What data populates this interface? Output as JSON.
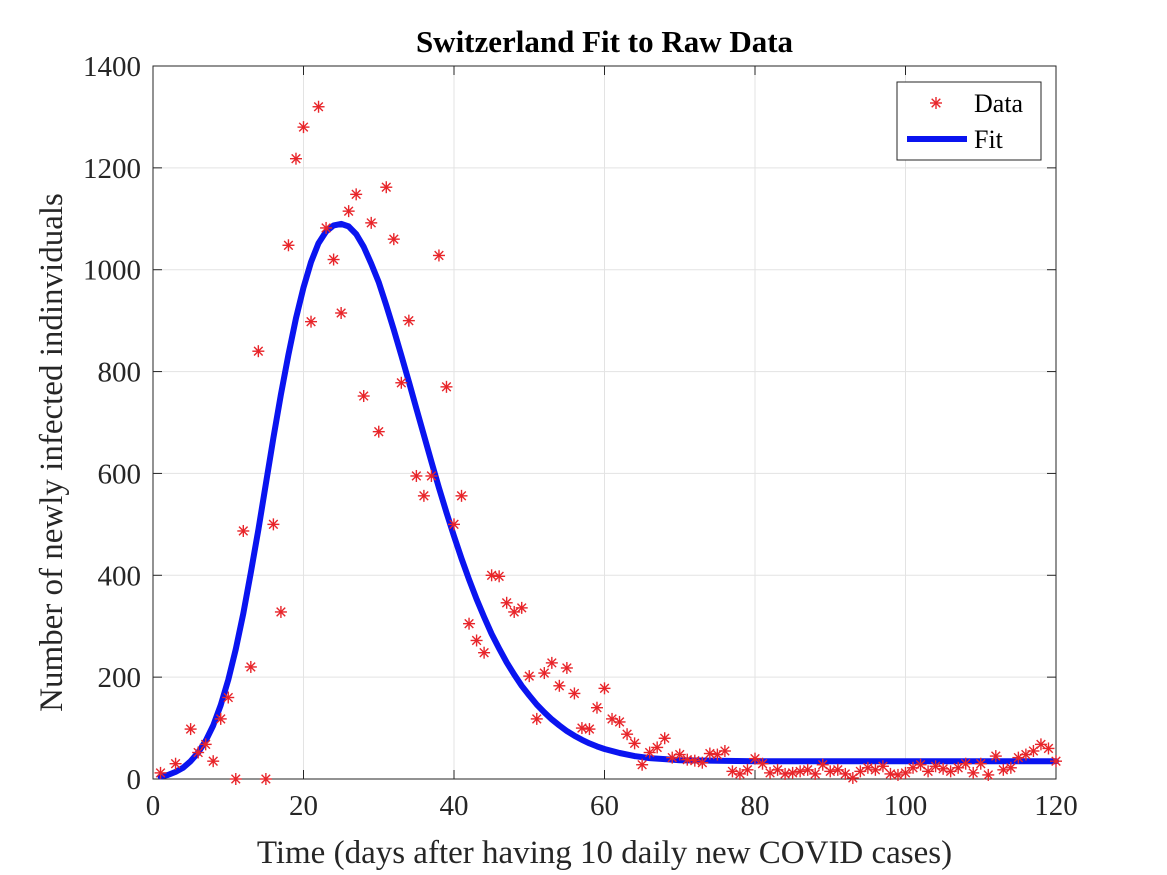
{
  "chart_data": {
    "type": "scatter",
    "title": "Switzerland Fit to Raw Data",
    "xlabel": "Time (days after having 10 daily new COVID cases)",
    "ylabel": "Number of newly infected indinviduals",
    "xlim": [
      0,
      120
    ],
    "ylim": [
      0,
      1400
    ],
    "xticks": [
      0,
      20,
      40,
      60,
      80,
      100,
      120
    ],
    "yticks": [
      0,
      200,
      400,
      600,
      800,
      1000,
      1200,
      1400
    ],
    "grid": true,
    "legend_position": "top-right",
    "series": [
      {
        "name": "Data",
        "type": "scatter",
        "marker": "asterisk",
        "color": "#e8252a",
        "points": [
          [
            1,
            12
          ],
          [
            3,
            30
          ],
          [
            5,
            98
          ],
          [
            6,
            52
          ],
          [
            7,
            68
          ],
          [
            8,
            35
          ],
          [
            9,
            118
          ],
          [
            10,
            160
          ],
          [
            11,
            0
          ],
          [
            12,
            487
          ],
          [
            13,
            220
          ],
          [
            14,
            840
          ],
          [
            15,
            0
          ],
          [
            16,
            500
          ],
          [
            17,
            328
          ],
          [
            18,
            1048
          ],
          [
            19,
            1218
          ],
          [
            20,
            1280
          ],
          [
            21,
            898
          ],
          [
            22,
            1320
          ],
          [
            23,
            1082
          ],
          [
            24,
            1020
          ],
          [
            25,
            915
          ],
          [
            26,
            1115
          ],
          [
            27,
            1148
          ],
          [
            28,
            752
          ],
          [
            29,
            1092
          ],
          [
            30,
            682
          ],
          [
            31,
            1162
          ],
          [
            32,
            1060
          ],
          [
            33,
            778
          ],
          [
            34,
            900
          ],
          [
            35,
            595
          ],
          [
            36,
            556
          ],
          [
            37,
            595
          ],
          [
            38,
            1028
          ],
          [
            39,
            770
          ],
          [
            40,
            500
          ],
          [
            41,
            556
          ],
          [
            42,
            305
          ],
          [
            43,
            272
          ],
          [
            44,
            248
          ],
          [
            45,
            400
          ],
          [
            46,
            398
          ],
          [
            47,
            346
          ],
          [
            48,
            328
          ],
          [
            49,
            336
          ],
          [
            50,
            202
          ],
          [
            51,
            118
          ],
          [
            52,
            208
          ],
          [
            53,
            228
          ],
          [
            54,
            183
          ],
          [
            55,
            218
          ],
          [
            56,
            168
          ],
          [
            57,
            100
          ],
          [
            58,
            98
          ],
          [
            59,
            140
          ],
          [
            60,
            178
          ],
          [
            61,
            118
          ],
          [
            62,
            112
          ],
          [
            63,
            88
          ],
          [
            64,
            70
          ],
          [
            65,
            28
          ],
          [
            66,
            52
          ],
          [
            67,
            62
          ],
          [
            68,
            80
          ],
          [
            69,
            42
          ],
          [
            70,
            48
          ],
          [
            71,
            38
          ],
          [
            72,
            36
          ],
          [
            73,
            32
          ],
          [
            74,
            50
          ],
          [
            75,
            48
          ],
          [
            76,
            55
          ],
          [
            77,
            15
          ],
          [
            78,
            10
          ],
          [
            79,
            18
          ],
          [
            80,
            40
          ],
          [
            81,
            30
          ],
          [
            82,
            12
          ],
          [
            83,
            18
          ],
          [
            84,
            10
          ],
          [
            85,
            12
          ],
          [
            86,
            15
          ],
          [
            87,
            18
          ],
          [
            88,
            10
          ],
          [
            89,
            28
          ],
          [
            90,
            15
          ],
          [
            91,
            18
          ],
          [
            92,
            10
          ],
          [
            93,
            2
          ],
          [
            94,
            15
          ],
          [
            95,
            22
          ],
          [
            96,
            18
          ],
          [
            97,
            25
          ],
          [
            98,
            10
          ],
          [
            99,
            8
          ],
          [
            100,
            12
          ],
          [
            101,
            22
          ],
          [
            102,
            28
          ],
          [
            103,
            15
          ],
          [
            104,
            25
          ],
          [
            105,
            20
          ],
          [
            106,
            15
          ],
          [
            107,
            22
          ],
          [
            108,
            30
          ],
          [
            109,
            12
          ],
          [
            110,
            30
          ],
          [
            111,
            8
          ],
          [
            112,
            45
          ],
          [
            113,
            18
          ],
          [
            114,
            22
          ],
          [
            115,
            42
          ],
          [
            116,
            48
          ],
          [
            117,
            55
          ],
          [
            118,
            68
          ],
          [
            119,
            60
          ],
          [
            120,
            35
          ]
        ]
      },
      {
        "name": "Fit",
        "type": "line",
        "color": "#0a14f0",
        "points": [
          [
            1,
            5
          ],
          [
            2,
            8
          ],
          [
            3,
            14
          ],
          [
            4,
            22
          ],
          [
            5,
            35
          ],
          [
            6,
            52
          ],
          [
            7,
            75
          ],
          [
            8,
            105
          ],
          [
            9,
            145
          ],
          [
            10,
            195
          ],
          [
            11,
            255
          ],
          [
            12,
            325
          ],
          [
            13,
            405
          ],
          [
            14,
            490
          ],
          [
            15,
            580
          ],
          [
            16,
            670
          ],
          [
            17,
            755
          ],
          [
            18,
            833
          ],
          [
            19,
            905
          ],
          [
            20,
            965
          ],
          [
            21,
            1015
          ],
          [
            22,
            1052
          ],
          [
            23,
            1075
          ],
          [
            24,
            1087
          ],
          [
            25,
            1090
          ],
          [
            26,
            1085
          ],
          [
            27,
            1070
          ],
          [
            28,
            1045
          ],
          [
            29,
            1012
          ],
          [
            30,
            975
          ],
          [
            31,
            930
          ],
          [
            32,
            882
          ],
          [
            33,
            832
          ],
          [
            34,
            780
          ],
          [
            35,
            727
          ],
          [
            36,
            675
          ],
          [
            37,
            623
          ],
          [
            38,
            572
          ],
          [
            39,
            523
          ],
          [
            40,
            477
          ],
          [
            41,
            433
          ],
          [
            42,
            392
          ],
          [
            43,
            353
          ],
          [
            44,
            318
          ],
          [
            45,
            285
          ],
          [
            46,
            256
          ],
          [
            47,
            229
          ],
          [
            48,
            205
          ],
          [
            49,
            183
          ],
          [
            50,
            164
          ],
          [
            51,
            146
          ],
          [
            52,
            131
          ],
          [
            53,
            117
          ],
          [
            54,
            105
          ],
          [
            55,
            94
          ],
          [
            56,
            85
          ],
          [
            57,
            77
          ],
          [
            58,
            70
          ],
          [
            59,
            64
          ],
          [
            60,
            59
          ],
          [
            62,
            51
          ],
          [
            64,
            45
          ],
          [
            66,
            41
          ],
          [
            68,
            39
          ],
          [
            70,
            37
          ],
          [
            75,
            36
          ],
          [
            80,
            35
          ],
          [
            90,
            35
          ],
          [
            100,
            35
          ],
          [
            110,
            35
          ],
          [
            120,
            35
          ]
        ]
      }
    ]
  }
}
